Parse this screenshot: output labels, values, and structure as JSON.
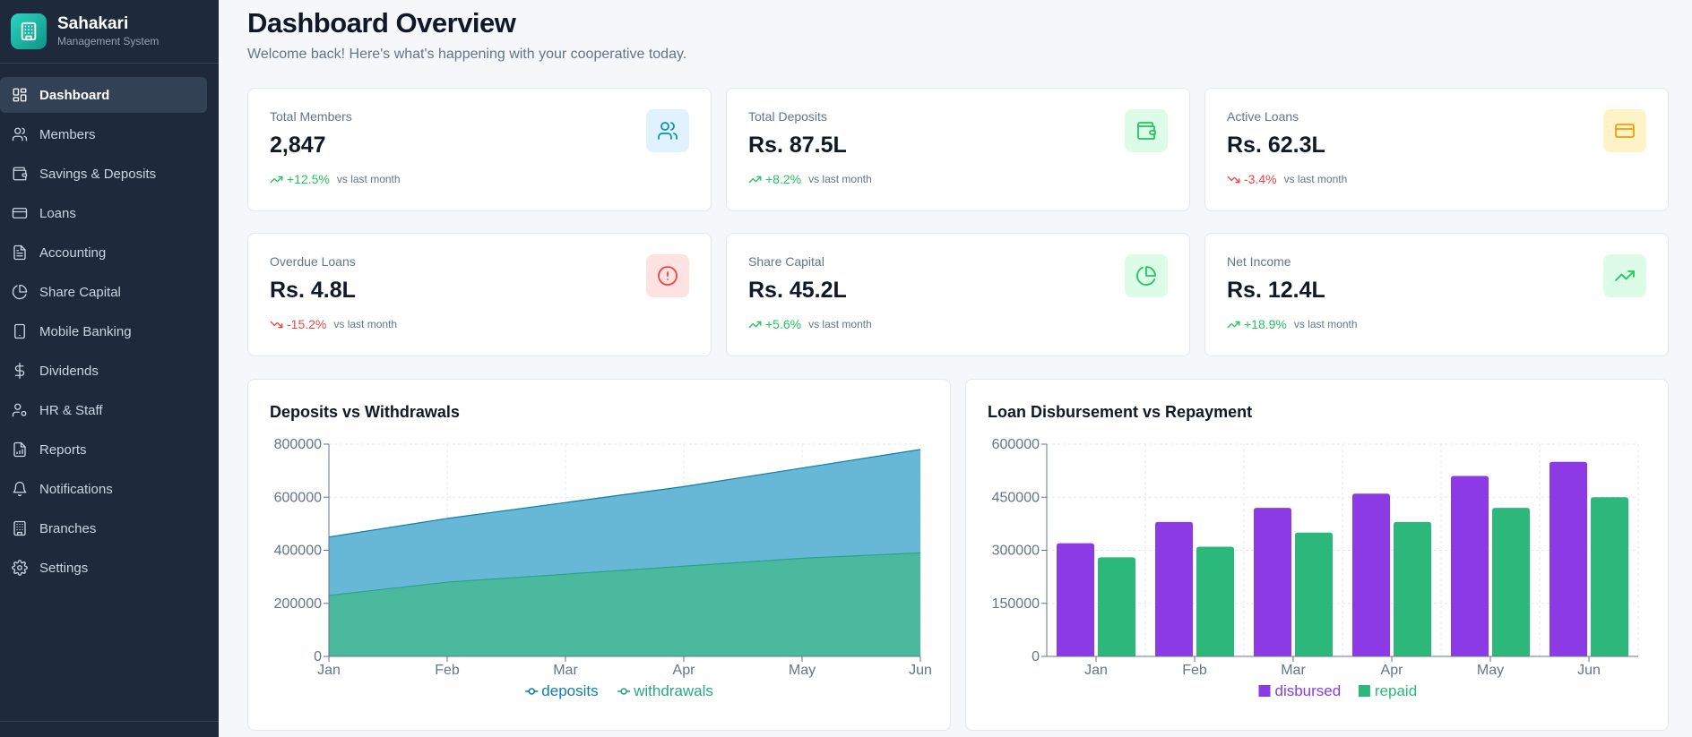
{
  "brand": {
    "name": "Sahakari",
    "subtitle": "Management System"
  },
  "nav": [
    {
      "label": "Dashboard",
      "icon": "dashboard-icon",
      "active": true
    },
    {
      "label": "Members",
      "icon": "users-icon"
    },
    {
      "label": "Savings & Deposits",
      "icon": "wallet-icon"
    },
    {
      "label": "Loans",
      "icon": "credit-card-icon"
    },
    {
      "label": "Accounting",
      "icon": "document-icon"
    },
    {
      "label": "Share Capital",
      "icon": "pie-chart-icon"
    },
    {
      "label": "Mobile Banking",
      "icon": "smartphone-icon"
    },
    {
      "label": "Dividends",
      "icon": "dollar-icon"
    },
    {
      "label": "HR & Staff",
      "icon": "user-cog-icon"
    },
    {
      "label": "Reports",
      "icon": "report-icon"
    },
    {
      "label": "Notifications",
      "icon": "bell-icon"
    },
    {
      "label": "Branches",
      "icon": "building-icon"
    },
    {
      "label": "Settings",
      "icon": "gear-icon"
    }
  ],
  "header": {
    "title": "Dashboard Overview",
    "subtitle": "Welcome back! Here's what's happening with your cooperative today."
  },
  "stats": [
    {
      "label": "Total Members",
      "value": "2,847",
      "change": "+12.5%",
      "trend": "up",
      "vs": "vs last month",
      "icon": "users-icon",
      "color": "#0891b2",
      "bg": "#e0f2fe"
    },
    {
      "label": "Total Deposits",
      "value": "Rs. 87.5L",
      "change": "+8.2%",
      "trend": "up",
      "vs": "vs last month",
      "icon": "wallet-icon",
      "color": "#22c55e",
      "bg": "#dcfce7"
    },
    {
      "label": "Active Loans",
      "value": "Rs. 62.3L",
      "change": "-3.4%",
      "trend": "down",
      "vs": "vs last month",
      "icon": "credit-card-icon",
      "color": "#f59e0b",
      "bg": "#fef3c7"
    },
    {
      "label": "Overdue Loans",
      "value": "Rs. 4.8L",
      "change": "-15.2%",
      "trend": "down",
      "vs": "vs last month",
      "icon": "alert-icon",
      "color": "#ef4444",
      "bg": "#fee2e2"
    },
    {
      "label": "Share Capital",
      "value": "Rs. 45.2L",
      "change": "+5.6%",
      "trend": "up",
      "vs": "vs last month",
      "icon": "pie-chart-icon",
      "color": "#22c55e",
      "bg": "#dcfce7"
    },
    {
      "label": "Net Income",
      "value": "Rs. 12.4L",
      "change": "+18.9%",
      "trend": "up",
      "vs": "vs last month",
      "icon": "trending-up-icon",
      "color": "#22c55e",
      "bg": "#dcfce7"
    }
  ],
  "chart_data": [
    {
      "type": "area",
      "title": "Deposits vs Withdrawals",
      "categories": [
        "Jan",
        "Feb",
        "Mar",
        "Apr",
        "May",
        "Jun"
      ],
      "series": [
        {
          "name": "deposits",
          "values": [
            450000,
            520000,
            580000,
            640000,
            710000,
            780000
          ],
          "color": "#0e7ea8",
          "fill": "#5fb4d4"
        },
        {
          "name": "withdrawals",
          "values": [
            230000,
            280000,
            310000,
            340000,
            370000,
            390000
          ],
          "color": "#2aa58a",
          "fill": "#49b89b"
        }
      ],
      "ylim": [
        0,
        800000
      ],
      "yticks": [
        "0",
        "200000",
        "400000",
        "600000",
        "800000"
      ],
      "grid": true,
      "legend": "bottom"
    },
    {
      "type": "bar",
      "title": "Loan Disbursement vs Repayment",
      "categories": [
        "Jan",
        "Feb",
        "Mar",
        "Apr",
        "May",
        "Jun"
      ],
      "series": [
        {
          "name": "disbursed",
          "values": [
            320000,
            380000,
            420000,
            460000,
            510000,
            550000
          ],
          "color": "#8b3ae6"
        },
        {
          "name": "repaid",
          "values": [
            280000,
            310000,
            350000,
            380000,
            420000,
            450000
          ],
          "color": "#2cb87a"
        }
      ],
      "ylim": [
        0,
        600000
      ],
      "yticks": [
        "0",
        "150000",
        "300000",
        "450000",
        "600000"
      ],
      "grid": true,
      "legend": "bottom"
    }
  ]
}
